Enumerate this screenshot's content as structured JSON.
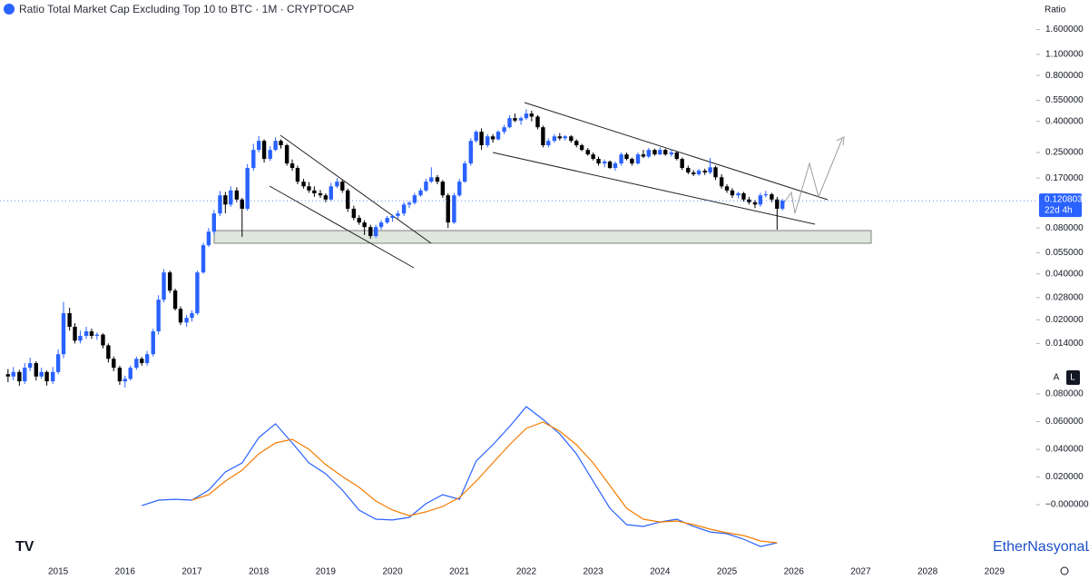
{
  "chart_data": [
    {
      "type": "candlestick",
      "title": "Ratio Total Market Cap Excluding Top 10 to BTC · 1M · CRYPTOCAP",
      "y_axis_label": "Ratio",
      "log_scale": true,
      "up_color": "#2962ff",
      "down_color": "#000000",
      "countdown": "22d 4h",
      "xlim": [
        2014.13,
        2029.6
      ],
      "xticks": [
        2015,
        2016,
        2017,
        2018,
        2019,
        2020,
        2021,
        2022,
        2023,
        2024,
        2025,
        2026,
        2027,
        2028,
        2029
      ],
      "ylim": [
        0.0069,
        2.5
      ],
      "yticks": [
        {
          "value": 1.6,
          "label": "1.600000"
        },
        {
          "value": 1.1,
          "label": "1.100000"
        },
        {
          "value": 0.8,
          "label": "0.800000"
        },
        {
          "value": 0.55,
          "label": "0.550000"
        },
        {
          "value": 0.4,
          "label": "0.400000"
        },
        {
          "value": 0.25,
          "label": "0.250000"
        },
        {
          "value": 0.17,
          "label": "0.170000"
        },
        {
          "value": 0.08,
          "label": "0.080000"
        },
        {
          "value": 0.055,
          "label": "0.055000"
        },
        {
          "value": 0.04,
          "label": "0.040000"
        },
        {
          "value": 0.028,
          "label": "0.028000"
        },
        {
          "value": 0.02,
          "label": "0.020000"
        },
        {
          "value": 0.014,
          "label": "0.014000"
        }
      ],
      "x": [
        2014.25,
        2014.33,
        2014.42,
        2014.5,
        2014.58,
        2014.67,
        2014.75,
        2014.83,
        2014.92,
        2015.0,
        2015.08,
        2015.17,
        2015.25,
        2015.33,
        2015.42,
        2015.5,
        2015.58,
        2015.67,
        2015.75,
        2015.83,
        2015.92,
        2016.0,
        2016.08,
        2016.17,
        2016.25,
        2016.33,
        2016.42,
        2016.5,
        2016.58,
        2016.67,
        2016.75,
        2016.83,
        2016.92,
        2017.0,
        2017.08,
        2017.17,
        2017.25,
        2017.33,
        2017.42,
        2017.5,
        2017.58,
        2017.67,
        2017.75,
        2017.83,
        2017.92,
        2018.0,
        2018.08,
        2018.17,
        2018.25,
        2018.33,
        2018.42,
        2018.5,
        2018.58,
        2018.67,
        2018.75,
        2018.83,
        2018.92,
        2019.0,
        2019.08,
        2019.17,
        2019.25,
        2019.33,
        2019.42,
        2019.5,
        2019.58,
        2019.67,
        2019.75,
        2019.83,
        2019.92,
        2020.0,
        2020.08,
        2020.17,
        2020.25,
        2020.33,
        2020.42,
        2020.5,
        2020.58,
        2020.67,
        2020.75,
        2020.83,
        2020.92,
        2021.0,
        2021.08,
        2021.17,
        2021.25,
        2021.33,
        2021.42,
        2021.5,
        2021.58,
        2021.67,
        2021.75,
        2021.83,
        2021.92,
        2022.0,
        2022.08,
        2022.17,
        2022.25,
        2022.33,
        2022.42,
        2022.5,
        2022.58,
        2022.67,
        2022.75,
        2022.83,
        2022.92,
        2023.0,
        2023.08,
        2023.17,
        2023.25,
        2023.33,
        2023.42,
        2023.5,
        2023.58,
        2023.67,
        2023.75,
        2023.83,
        2023.92,
        2024.0,
        2024.08,
        2024.17,
        2024.25,
        2024.33,
        2024.42,
        2024.5,
        2024.58,
        2024.67,
        2024.75,
        2024.83,
        2024.92,
        2025.0,
        2025.08,
        2025.17,
        2025.25,
        2025.33,
        2025.42,
        2025.5,
        2025.58,
        2025.67,
        2025.75,
        2025.83
      ],
      "candles": [
        [
          0.0088,
          0.0095,
          0.0078,
          0.0085
        ],
        [
          0.0085,
          0.0098,
          0.008,
          0.0091
        ],
        [
          0.0091,
          0.0094,
          0.0074,
          0.0079
        ],
        [
          0.0079,
          0.0104,
          0.0076,
          0.0097
        ],
        [
          0.0097,
          0.0113,
          0.0092,
          0.0104
        ],
        [
          0.0104,
          0.0107,
          0.008,
          0.0085
        ],
        [
          0.0085,
          0.0097,
          0.0082,
          0.0091
        ],
        [
          0.0091,
          0.0093,
          0.0074,
          0.0079
        ],
        [
          0.0079,
          0.0098,
          0.0076,
          0.0091
        ],
        [
          0.0091,
          0.0128,
          0.0088,
          0.0119
        ],
        [
          0.0119,
          0.0262,
          0.0112,
          0.0221
        ],
        [
          0.0221,
          0.024,
          0.017,
          0.018
        ],
        [
          0.018,
          0.019,
          0.014,
          0.0146
        ],
        [
          0.0146,
          0.017,
          0.014,
          0.0157
        ],
        [
          0.0157,
          0.018,
          0.015,
          0.0168
        ],
        [
          0.0168,
          0.0175,
          0.015,
          0.0157
        ],
        [
          0.0157,
          0.0165,
          0.0148,
          0.016
        ],
        [
          0.016,
          0.0163,
          0.013,
          0.0136
        ],
        [
          0.0136,
          0.014,
          0.0105,
          0.0111
        ],
        [
          0.0111,
          0.0115,
          0.0092,
          0.0097
        ],
        [
          0.0097,
          0.01,
          0.0075,
          0.0079
        ],
        [
          0.0079,
          0.0086,
          0.0072,
          0.0082
        ],
        [
          0.0082,
          0.01,
          0.008,
          0.0097
        ],
        [
          0.0097,
          0.0115,
          0.0094,
          0.0111
        ],
        [
          0.0111,
          0.0114,
          0.01,
          0.0104
        ],
        [
          0.0104,
          0.0125,
          0.01,
          0.0119
        ],
        [
          0.0119,
          0.0175,
          0.0115,
          0.0168
        ],
        [
          0.0168,
          0.029,
          0.016,
          0.0271
        ],
        [
          0.0271,
          0.043,
          0.026,
          0.0409
        ],
        [
          0.0409,
          0.042,
          0.03,
          0.0311
        ],
        [
          0.0311,
          0.032,
          0.023,
          0.0236
        ],
        [
          0.0236,
          0.0245,
          0.0185,
          0.0192
        ],
        [
          0.0192,
          0.0215,
          0.018,
          0.0206
        ],
        [
          0.0206,
          0.023,
          0.0195,
          0.0221
        ],
        [
          0.0221,
          0.042,
          0.0215,
          0.0409
        ],
        [
          0.0409,
          0.064,
          0.04,
          0.0617
        ],
        [
          0.0617,
          0.08,
          0.06,
          0.0757
        ],
        [
          0.0757,
          0.105,
          0.072,
          0.0996
        ],
        [
          0.0996,
          0.14,
          0.096,
          0.131
        ],
        [
          0.131,
          0.138,
          0.1,
          0.114
        ],
        [
          0.114,
          0.15,
          0.11,
          0.141
        ],
        [
          0.141,
          0.148,
          0.118,
          0.123
        ],
        [
          0.123,
          0.126,
          0.07,
          0.107
        ],
        [
          0.107,
          0.21,
          0.104,
          0.198
        ],
        [
          0.198,
          0.285,
          0.19,
          0.26
        ],
        [
          0.26,
          0.32,
          0.25,
          0.298
        ],
        [
          0.298,
          0.305,
          0.215,
          0.227
        ],
        [
          0.227,
          0.275,
          0.22,
          0.26
        ],
        [
          0.26,
          0.315,
          0.255,
          0.298
        ],
        [
          0.298,
          0.305,
          0.265,
          0.279
        ],
        [
          0.279,
          0.285,
          0.205,
          0.212
        ],
        [
          0.212,
          0.225,
          0.19,
          0.198
        ],
        [
          0.198,
          0.205,
          0.155,
          0.161
        ],
        [
          0.161,
          0.168,
          0.145,
          0.15
        ],
        [
          0.15,
          0.16,
          0.136,
          0.141
        ],
        [
          0.141,
          0.15,
          0.128,
          0.135
        ],
        [
          0.135,
          0.142,
          0.126,
          0.131
        ],
        [
          0.131,
          0.135,
          0.118,
          0.123
        ],
        [
          0.123,
          0.158,
          0.12,
          0.15
        ],
        [
          0.15,
          0.17,
          0.146,
          0.161
        ],
        [
          0.161,
          0.165,
          0.136,
          0.141
        ],
        [
          0.141,
          0.145,
          0.102,
          0.107
        ],
        [
          0.107,
          0.112,
          0.09,
          0.0931
        ],
        [
          0.0931,
          0.097,
          0.084,
          0.0869
        ],
        [
          0.0869,
          0.09,
          0.072,
          0.0811
        ],
        [
          0.0811,
          0.084,
          0.068,
          0.0708
        ],
        [
          0.0708,
          0.084,
          0.069,
          0.0811
        ],
        [
          0.0811,
          0.09,
          0.078,
          0.0869
        ],
        [
          0.0869,
          0.096,
          0.085,
          0.0931
        ],
        [
          0.0931,
          0.098,
          0.088,
          0.096
        ],
        [
          0.096,
          0.104,
          0.092,
          0.0996
        ],
        [
          0.0996,
          0.118,
          0.096,
          0.114
        ],
        [
          0.114,
          0.12,
          0.108,
          0.117
        ],
        [
          0.117,
          0.136,
          0.114,
          0.131
        ],
        [
          0.131,
          0.146,
          0.128,
          0.141
        ],
        [
          0.141,
          0.168,
          0.138,
          0.161
        ],
        [
          0.161,
          0.2,
          0.158,
          0.172
        ],
        [
          0.172,
          0.178,
          0.155,
          0.161
        ],
        [
          0.161,
          0.165,
          0.126,
          0.131
        ],
        [
          0.131,
          0.135,
          0.08,
          0.0869
        ],
        [
          0.0869,
          0.136,
          0.085,
          0.131
        ],
        [
          0.131,
          0.168,
          0.128,
          0.161
        ],
        [
          0.161,
          0.22,
          0.158,
          0.212
        ],
        [
          0.212,
          0.31,
          0.205,
          0.298
        ],
        [
          0.298,
          0.35,
          0.29,
          0.342
        ],
        [
          0.342,
          0.36,
          0.26,
          0.279
        ],
        [
          0.279,
          0.33,
          0.27,
          0.319
        ],
        [
          0.319,
          0.33,
          0.29,
          0.305
        ],
        [
          0.305,
          0.35,
          0.3,
          0.342
        ],
        [
          0.342,
          0.38,
          0.33,
          0.366
        ],
        [
          0.366,
          0.44,
          0.36,
          0.42
        ],
        [
          0.42,
          0.45,
          0.395,
          0.405
        ],
        [
          0.405,
          0.43,
          0.38,
          0.42
        ],
        [
          0.42,
          0.48,
          0.41,
          0.45
        ],
        [
          0.45,
          0.47,
          0.4,
          0.43
        ],
        [
          0.43,
          0.44,
          0.355,
          0.366
        ],
        [
          0.366,
          0.375,
          0.27,
          0.279
        ],
        [
          0.279,
          0.31,
          0.27,
          0.298
        ],
        [
          0.298,
          0.33,
          0.29,
          0.319
        ],
        [
          0.319,
          0.335,
          0.3,
          0.31
        ],
        [
          0.31,
          0.325,
          0.3,
          0.319
        ],
        [
          0.319,
          0.325,
          0.29,
          0.298
        ],
        [
          0.298,
          0.305,
          0.27,
          0.279
        ],
        [
          0.279,
          0.285,
          0.255,
          0.26
        ],
        [
          0.26,
          0.268,
          0.238,
          0.243
        ],
        [
          0.243,
          0.25,
          0.222,
          0.227
        ],
        [
          0.227,
          0.235,
          0.205,
          0.212
        ],
        [
          0.212,
          0.225,
          0.2,
          0.218
        ],
        [
          0.218,
          0.222,
          0.195,
          0.198
        ],
        [
          0.198,
          0.218,
          0.19,
          0.212
        ],
        [
          0.212,
          0.25,
          0.205,
          0.243
        ],
        [
          0.243,
          0.25,
          0.222,
          0.227
        ],
        [
          0.227,
          0.232,
          0.205,
          0.212
        ],
        [
          0.212,
          0.25,
          0.208,
          0.243
        ],
        [
          0.243,
          0.26,
          0.23,
          0.235
        ],
        [
          0.235,
          0.268,
          0.23,
          0.26
        ],
        [
          0.26,
          0.265,
          0.238,
          0.243
        ],
        [
          0.243,
          0.27,
          0.24,
          0.26
        ],
        [
          0.26,
          0.265,
          0.238,
          0.243
        ],
        [
          0.243,
          0.262,
          0.235,
          0.25
        ],
        [
          0.25,
          0.255,
          0.222,
          0.227
        ],
        [
          0.227,
          0.232,
          0.192,
          0.198
        ],
        [
          0.198,
          0.205,
          0.18,
          0.185
        ],
        [
          0.185,
          0.192,
          0.175,
          0.18
        ],
        [
          0.18,
          0.195,
          0.176,
          0.19
        ],
        [
          0.19,
          0.196,
          0.178,
          0.185
        ],
        [
          0.185,
          0.23,
          0.18,
          0.2
        ],
        [
          0.2,
          0.205,
          0.165,
          0.172
        ],
        [
          0.172,
          0.18,
          0.145,
          0.15
        ],
        [
          0.15,
          0.155,
          0.136,
          0.141
        ],
        [
          0.141,
          0.146,
          0.126,
          0.131
        ],
        [
          0.131,
          0.138,
          0.125,
          0.135
        ],
        [
          0.135,
          0.138,
          0.119,
          0.123
        ],
        [
          0.123,
          0.128,
          0.114,
          0.118
        ],
        [
          0.118,
          0.122,
          0.108,
          0.114
        ],
        [
          0.114,
          0.136,
          0.11,
          0.131
        ],
        [
          0.131,
          0.14,
          0.127,
          0.133
        ],
        [
          0.133,
          0.136,
          0.118,
          0.123
        ],
        [
          0.123,
          0.128,
          0.078,
          0.107
        ],
        [
          0.107,
          0.124,
          0.104,
          0.120803
        ]
      ]
    },
    {
      "type": "line",
      "xlim": [
        2014.13,
        2029.6
      ],
      "ylim": [
        -0.0354,
        0.0859
      ],
      "yticks": [
        {
          "value": 0.08,
          "label": "0.080000"
        },
        {
          "value": 0.06,
          "label": "0.060000"
        },
        {
          "value": 0.04,
          "label": "0.040000"
        },
        {
          "value": 0.02,
          "label": "0.020000"
        },
        {
          "value": 0,
          "label": "−0.000000"
        }
      ],
      "x": [
        2016.25,
        2016.5,
        2016.75,
        2017.0,
        2017.25,
        2017.5,
        2017.75,
        2018.0,
        2018.25,
        2018.5,
        2018.75,
        2019.0,
        2019.25,
        2019.5,
        2019.75,
        2020.0,
        2020.25,
        2020.5,
        2020.75,
        2021.0,
        2021.25,
        2021.5,
        2021.75,
        2022.0,
        2022.25,
        2022.5,
        2022.75,
        2023.0,
        2023.25,
        2023.5,
        2023.75,
        2024.0,
        2024.25,
        2024.5,
        2024.75,
        2025.0,
        2025.25,
        2025.5,
        2025.75
      ],
      "series": [
        {
          "color": "#2962ff",
          "values": [
            -0.0007,
            0.0033,
            0.0039,
            0.0033,
            0.0105,
            0.0236,
            0.0302,
            0.0485,
            0.0584,
            0.0446,
            0.0302,
            0.0223,
            0.0105,
            -0.0039,
            -0.0105,
            -0.0111,
            -0.0092,
            0.0007,
            0.0072,
            0.0039,
            0.0315,
            0.0433,
            0.0564,
            0.0708,
            0.0616,
            0.0511,
            0.0367,
            0.017,
            -0.0026,
            -0.0144,
            -0.0157,
            -0.0125,
            -0.0105,
            -0.0157,
            -0.0197,
            -0.021,
            -0.0249,
            -0.0302,
            -0.0275
          ]
        },
        {
          "color": "#f57c00",
          "values": [
            null,
            null,
            null,
            0.0033,
            0.0072,
            0.017,
            0.0249,
            0.0367,
            0.0446,
            0.0472,
            0.04,
            0.0289,
            0.0203,
            0.0125,
            0.0026,
            -0.0039,
            -0.0079,
            -0.0052,
            -0.0013,
            0.0052,
            0.017,
            0.0302,
            0.0433,
            0.0551,
            0.0597,
            0.0531,
            0.0433,
            0.0302,
            0.0138,
            -0.0026,
            -0.0105,
            -0.0125,
            -0.0118,
            -0.0144,
            -0.0177,
            -0.0203,
            -0.0223,
            -0.0262,
            -0.0275
          ]
        }
      ]
    }
  ],
  "watermark": "EtherNasyonaL",
  "scale_buttons": [
    "A",
    "L"
  ]
}
